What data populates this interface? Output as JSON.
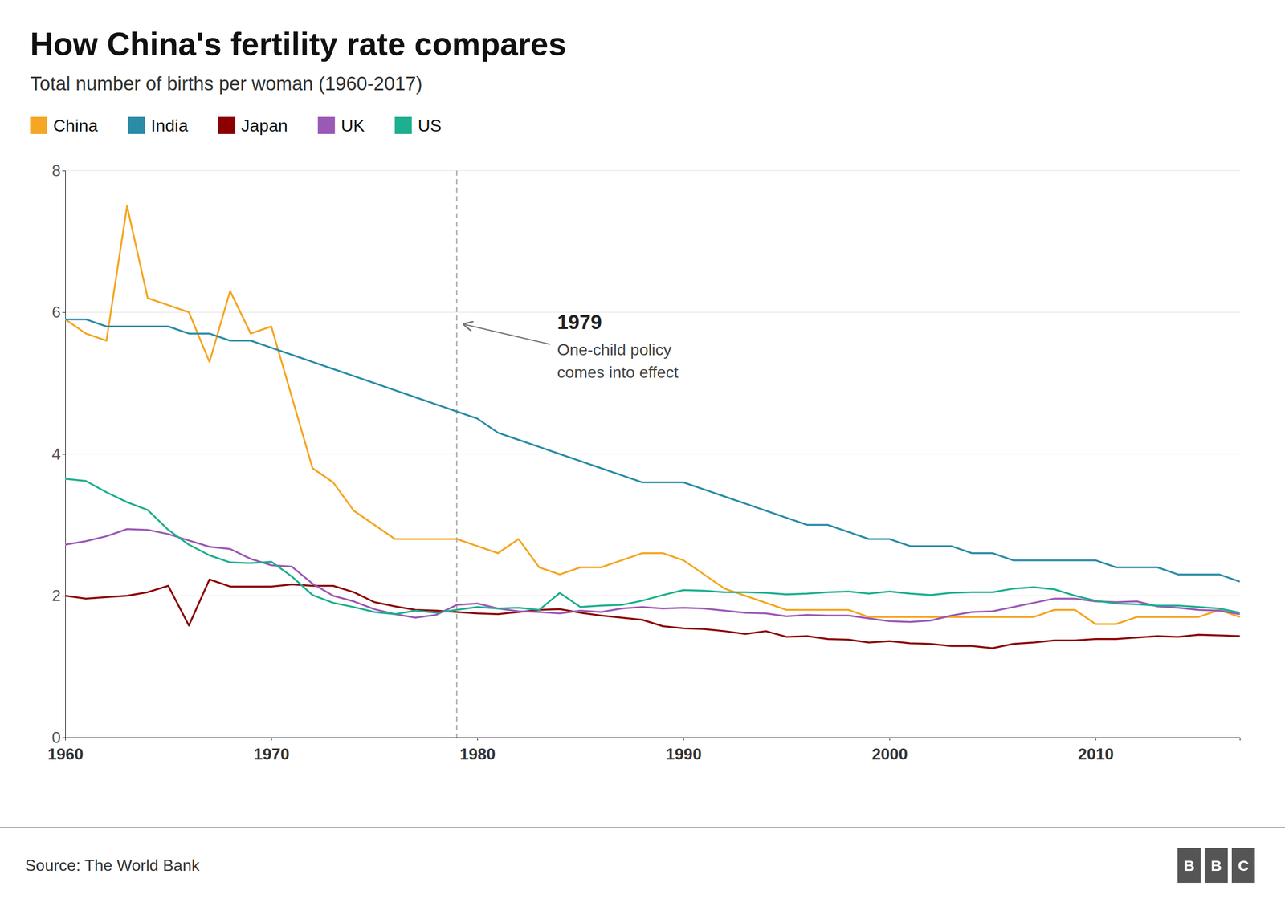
{
  "chart_data": {
    "type": "line",
    "title": "How China's fertility rate compares",
    "subtitle": "Total number of births per woman (1960-2017)",
    "source": "Source: The World Bank",
    "logo": [
      "B",
      "B",
      "C"
    ],
    "x": [
      1960,
      1961,
      1962,
      1963,
      1964,
      1965,
      1966,
      1967,
      1968,
      1969,
      1970,
      1971,
      1972,
      1973,
      1974,
      1975,
      1976,
      1977,
      1978,
      1979,
      1980,
      1981,
      1982,
      1983,
      1984,
      1985,
      1986,
      1987,
      1988,
      1989,
      1990,
      1991,
      1992,
      1993,
      1994,
      1995,
      1996,
      1997,
      1998,
      1999,
      2000,
      2001,
      2002,
      2003,
      2004,
      2005,
      2006,
      2007,
      2008,
      2009,
      2010,
      2011,
      2012,
      2013,
      2014,
      2015,
      2016,
      2017
    ],
    "series": [
      {
        "name": "China",
        "color": "#F5A623",
        "values": [
          5.9,
          5.7,
          5.6,
          7.5,
          6.2,
          6.1,
          6.0,
          5.3,
          6.3,
          5.7,
          5.8,
          4.8,
          3.8,
          3.6,
          3.2,
          3.0,
          2.8,
          2.8,
          2.8,
          2.8,
          2.7,
          2.6,
          2.8,
          2.4,
          2.3,
          2.4,
          2.4,
          2.5,
          2.6,
          2.6,
          2.5,
          2.3,
          2.1,
          2.0,
          1.9,
          1.8,
          1.8,
          1.8,
          1.8,
          1.7,
          1.7,
          1.7,
          1.7,
          1.7,
          1.7,
          1.7,
          1.7,
          1.7,
          1.8,
          1.8,
          1.6,
          1.6,
          1.7,
          1.7,
          1.7,
          1.7,
          1.8,
          1.7
        ]
      },
      {
        "name": "India",
        "color": "#2B8CA8",
        "values": [
          5.9,
          5.9,
          5.8,
          5.8,
          5.8,
          5.8,
          5.7,
          5.7,
          5.6,
          5.6,
          5.5,
          5.4,
          5.3,
          5.2,
          5.1,
          5.0,
          4.9,
          4.8,
          4.7,
          4.6,
          4.5,
          4.3,
          4.2,
          4.1,
          4.0,
          3.9,
          3.8,
          3.7,
          3.6,
          3.6,
          3.6,
          3.5,
          3.4,
          3.3,
          3.2,
          3.1,
          3.0,
          3.0,
          2.9,
          2.8,
          2.8,
          2.7,
          2.7,
          2.7,
          2.6,
          2.6,
          2.5,
          2.5,
          2.5,
          2.5,
          2.5,
          2.4,
          2.4,
          2.4,
          2.3,
          2.3,
          2.3,
          2.2
        ]
      },
      {
        "name": "Japan",
        "color": "#8B0000",
        "values": [
          2.0,
          1.96,
          1.98,
          2.0,
          2.05,
          2.14,
          1.58,
          2.23,
          2.13,
          2.13,
          2.13,
          2.16,
          2.14,
          2.14,
          2.05,
          1.91,
          1.85,
          1.8,
          1.79,
          1.77,
          1.75,
          1.74,
          1.77,
          1.8,
          1.81,
          1.76,
          1.72,
          1.69,
          1.66,
          1.57,
          1.54,
          1.53,
          1.5,
          1.46,
          1.5,
          1.42,
          1.43,
          1.39,
          1.38,
          1.34,
          1.36,
          1.33,
          1.32,
          1.29,
          1.29,
          1.26,
          1.32,
          1.34,
          1.37,
          1.37,
          1.39,
          1.39,
          1.41,
          1.43,
          1.42,
          1.45,
          1.44,
          1.43
        ]
      },
      {
        "name": "UK",
        "color": "#9B59B6",
        "values": [
          2.72,
          2.77,
          2.84,
          2.94,
          2.93,
          2.87,
          2.78,
          2.69,
          2.66,
          2.52,
          2.43,
          2.41,
          2.17,
          2.0,
          1.92,
          1.81,
          1.74,
          1.69,
          1.73,
          1.87,
          1.89,
          1.82,
          1.78,
          1.77,
          1.75,
          1.79,
          1.77,
          1.82,
          1.84,
          1.82,
          1.83,
          1.82,
          1.79,
          1.76,
          1.75,
          1.71,
          1.73,
          1.72,
          1.72,
          1.68,
          1.64,
          1.63,
          1.65,
          1.72,
          1.77,
          1.78,
          1.84,
          1.9,
          1.96,
          1.96,
          1.92,
          1.91,
          1.92,
          1.85,
          1.83,
          1.8,
          1.79,
          1.74
        ]
      },
      {
        "name": "US",
        "color": "#1DAF8E",
        "values": [
          3.65,
          3.62,
          3.46,
          3.32,
          3.21,
          2.93,
          2.72,
          2.57,
          2.47,
          2.46,
          2.48,
          2.27,
          2.01,
          1.9,
          1.84,
          1.77,
          1.74,
          1.79,
          1.76,
          1.8,
          1.84,
          1.82,
          1.83,
          1.8,
          2.04,
          1.84,
          1.86,
          1.87,
          1.93,
          2.01,
          2.08,
          2.07,
          2.05,
          2.05,
          2.04,
          2.02,
          2.03,
          2.05,
          2.06,
          2.03,
          2.06,
          2.03,
          2.01,
          2.04,
          2.05,
          2.05,
          2.1,
          2.12,
          2.09,
          2.0,
          1.93,
          1.89,
          1.88,
          1.86,
          1.86,
          1.84,
          1.82,
          1.76
        ]
      }
    ],
    "xlim": [
      1960,
      2017
    ],
    "xticks": [
      1960,
      1970,
      1980,
      1990,
      2000,
      2010
    ],
    "ylim": [
      0,
      8
    ],
    "yticks": [
      0,
      2,
      4,
      6,
      8
    ],
    "grid": true,
    "legend": "top-left",
    "annotations": [
      {
        "x": 1979,
        "label": "1979",
        "text": "One-child policy\ncomes into effect"
      }
    ]
  }
}
